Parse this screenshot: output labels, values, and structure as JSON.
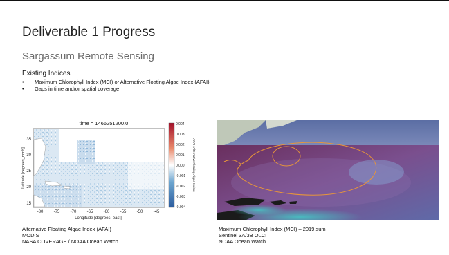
{
  "slide": {
    "title": "Deliverable 1 Progress",
    "subtitle": "Sargassum Remote Sensing",
    "section_heading": "Existing Indices",
    "bullets": [
      "Maximum Chlorophyll Index (MCI) or Alternative Floating Algae Index (AFAI)",
      "Gaps in time and/or spatial coverage"
    ]
  },
  "left_figure": {
    "plot_title": "time = 1466251200.0",
    "xlabel": "Longitude [degrees_east]",
    "ylabel": "Latitude [degrees_north]",
    "colorbar_label": "AFAI (Alternative Floating Algae Index)",
    "x_ticks": [
      "-80",
      "-75",
      "-70",
      "-65",
      "-60",
      "-55",
      "-50",
      "-45"
    ],
    "y_ticks": [
      "35",
      "30",
      "25",
      "20",
      "15"
    ],
    "colorbar_ticks": [
      "0.004",
      "0.003",
      "0.002",
      "0.001",
      "0.000",
      "-0.001",
      "-0.002",
      "-0.003",
      "-0.004"
    ],
    "colormap": [
      "#2b5c9e",
      "#6ea6d0",
      "#ffffff",
      "#e98a6c",
      "#a3102a"
    ],
    "caption": [
      "Alternative Floating Algae Index (AFAI)",
      "MODIS",
      "NASA COVERAGE / NOAA Ocean Watch"
    ]
  },
  "right_figure": {
    "caption": [
      "Maximum Chlorophyll Index (MCI) – 2019 sum",
      "Sentinel 3A/3B OLCI",
      "NOAA Ocean Watch"
    ]
  }
}
